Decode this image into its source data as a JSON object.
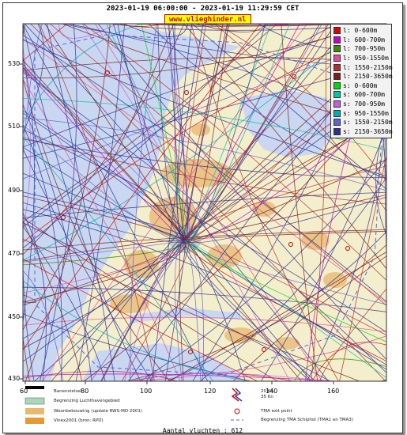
{
  "header": {
    "title": "2023-01-19 06:00:00 - 2023-01-19 11:29:59 CET"
  },
  "badge": {
    "label": "www.vlieghinder.nl"
  },
  "legend": [
    {
      "label": "l: 0-600m",
      "color": "#e00000"
    },
    {
      "label": "l: 600-700m",
      "color": "#c800c8"
    },
    {
      "label": "l: 700-950m",
      "color": "#3c8c00"
    },
    {
      "label": "l: 950-1550m",
      "color": "#e0509a"
    },
    {
      "label": "l: 1550-2150m",
      "color": "#b03030"
    },
    {
      "label": "l: 2150-3650m",
      "color": "#7a1e1e"
    },
    {
      "label": "s: 0-600m",
      "color": "#00e000"
    },
    {
      "label": "s: 600-700m",
      "color": "#00c8a0"
    },
    {
      "label": "s: 700-950m",
      "color": "#c060e0"
    },
    {
      "label": "s: 950-1550m",
      "color": "#00b0b0"
    },
    {
      "label": "s: 1550-2150m",
      "color": "#6060d0"
    },
    {
      "label": "s: 2150-3650m",
      "color": "#303090"
    }
  ],
  "axes": {
    "y_ticks": [
      "530",
      "510",
      "490",
      "470",
      "450",
      "430"
    ],
    "x_ticks": [
      "60",
      "80",
      "100",
      "120",
      "140",
      "160"
    ]
  },
  "map_key": {
    "runway": "Banenstelsel",
    "airport_boundary": "Begrenzing Luchthavengebied",
    "housing": "Woonbebouwing (update RWS-MD 2001)",
    "vinex": "Vinex2001 (bron: RPD)",
    "wind_label_1": "20 Kn",
    "wind_label_2": "35 Kn",
    "tma_exit": "TMA exit point",
    "tma_boundary": "Begrenzing TMA Schiphol  (TMA1 en TMA3)"
  },
  "footer": {
    "count_text": "Aantal vluchten : 612"
  }
}
